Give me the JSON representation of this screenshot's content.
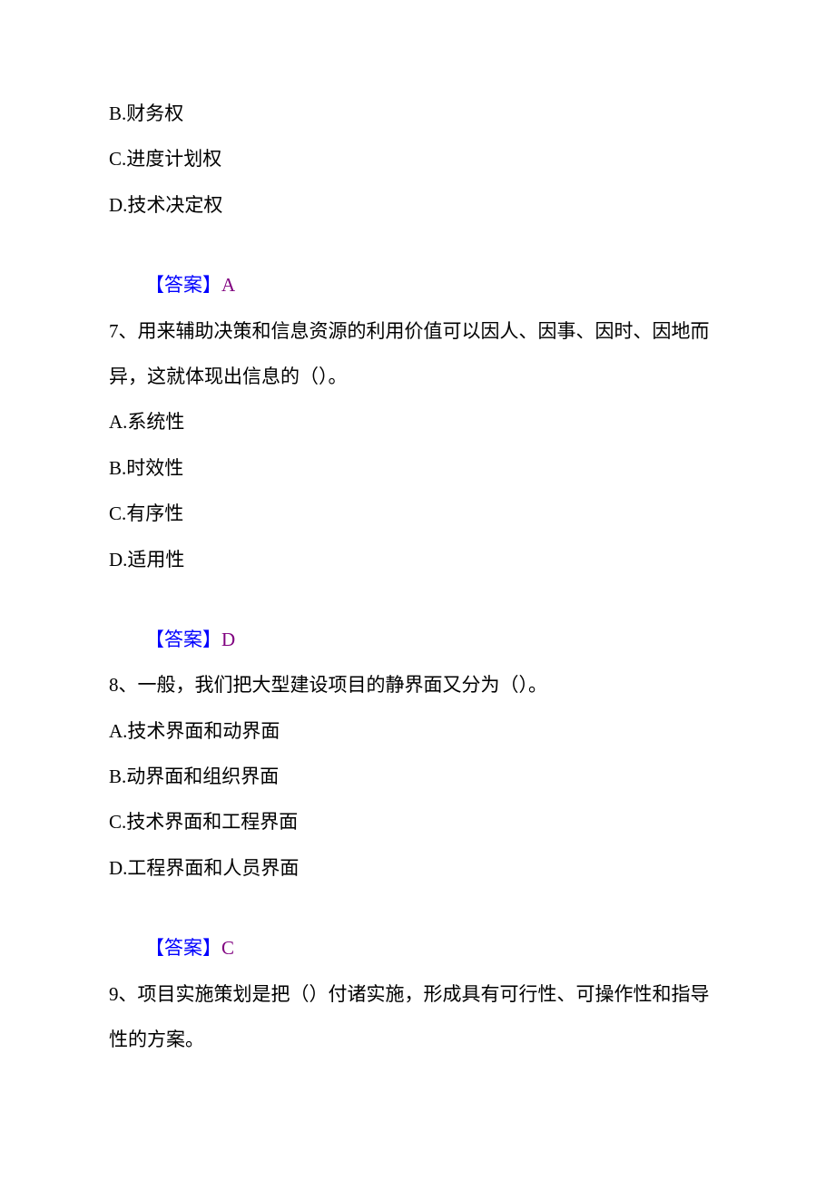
{
  "colors": {
    "text": "#000000",
    "answer_blue": "#0000ff",
    "answer_purple": "#800080",
    "background": "#ffffff"
  },
  "typography": {
    "font_family": "SimSun",
    "font_size_pt": 16,
    "line_height": 2.4
  },
  "opening_options": {
    "b": "B.财务权",
    "c": "C.进度计划权",
    "d": "D.技术决定权"
  },
  "answer6": {
    "label": "【答案】",
    "value": "A"
  },
  "q7": {
    "stem": "7、用来辅助决策和信息资源的利用价值可以因人、因事、因时、因地而异，这就体现出信息的（）。",
    "options": {
      "a": "A.系统性",
      "b": "B.时效性",
      "c": "C.有序性",
      "d": "D.适用性"
    }
  },
  "answer7": {
    "label": "【答案】",
    "value": "D"
  },
  "q8": {
    "stem": "8、一般，我们把大型建设项目的静界面又分为（）。",
    "options": {
      "a": "A.技术界面和动界面",
      "b": "B.动界面和组织界面",
      "c": "C.技术界面和工程界面",
      "d": "D.工程界面和人员界面"
    }
  },
  "answer8": {
    "label": "【答案】",
    "value": "C"
  },
  "q9": {
    "stem": "9、项目实施策划是把（）付诸实施，形成具有可行性、可操作性和指导性的方案。"
  }
}
